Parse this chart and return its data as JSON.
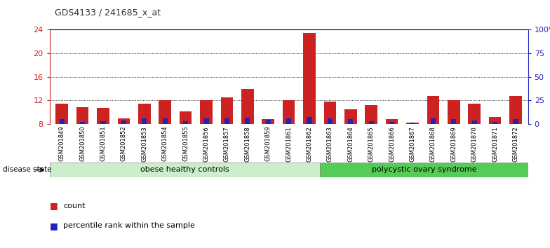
{
  "title": "GDS4133 / 241685_x_at",
  "samples": [
    "GSM201849",
    "GSM201850",
    "GSM201851",
    "GSM201852",
    "GSM201853",
    "GSM201854",
    "GSM201855",
    "GSM201856",
    "GSM201857",
    "GSM201858",
    "GSM201859",
    "GSM201861",
    "GSM201862",
    "GSM201863",
    "GSM201864",
    "GSM201865",
    "GSM201866",
    "GSM201867",
    "GSM201868",
    "GSM201869",
    "GSM201870",
    "GSM201871",
    "GSM201872"
  ],
  "count_values": [
    11.5,
    10.8,
    10.7,
    9.0,
    11.5,
    12.0,
    10.2,
    12.0,
    12.5,
    14.0,
    8.8,
    12.0,
    23.5,
    11.8,
    10.5,
    11.2,
    8.8,
    8.2,
    12.8,
    12.0,
    11.4,
    9.2,
    12.8
  ],
  "percentile_values": [
    0.8,
    0.4,
    0.5,
    0.6,
    0.9,
    1.0,
    0.5,
    0.9,
    1.0,
    1.1,
    0.7,
    0.9,
    1.2,
    0.9,
    0.8,
    0.5,
    0.4,
    0.2,
    1.0,
    0.8,
    0.6,
    0.4,
    0.8
  ],
  "base": 8,
  "ylim_left": [
    8,
    24
  ],
  "ylim_right": [
    0,
    100
  ],
  "yticks_left": [
    8,
    12,
    16,
    20,
    24
  ],
  "yticks_right": [
    0,
    25,
    50,
    75,
    100
  ],
  "ytick_labels_right": [
    "0",
    "25",
    "50",
    "75",
    "100%"
  ],
  "group1_count": 13,
  "group1_label": "obese healthy controls",
  "group2_label": "polycystic ovary syndrome",
  "disease_state_label": "disease state",
  "legend_count_label": "count",
  "legend_pct_label": "percentile rank within the sample",
  "bar_color_count": "#cc2222",
  "bar_color_pct": "#2222bb",
  "group1_color": "#cceecc",
  "group2_color": "#55cc55",
  "left_tick_color": "#cc2222",
  "right_tick_color": "#2222bb",
  "grid_color": "#000000",
  "bar_width": 0.6,
  "pct_bar_width": 0.25
}
